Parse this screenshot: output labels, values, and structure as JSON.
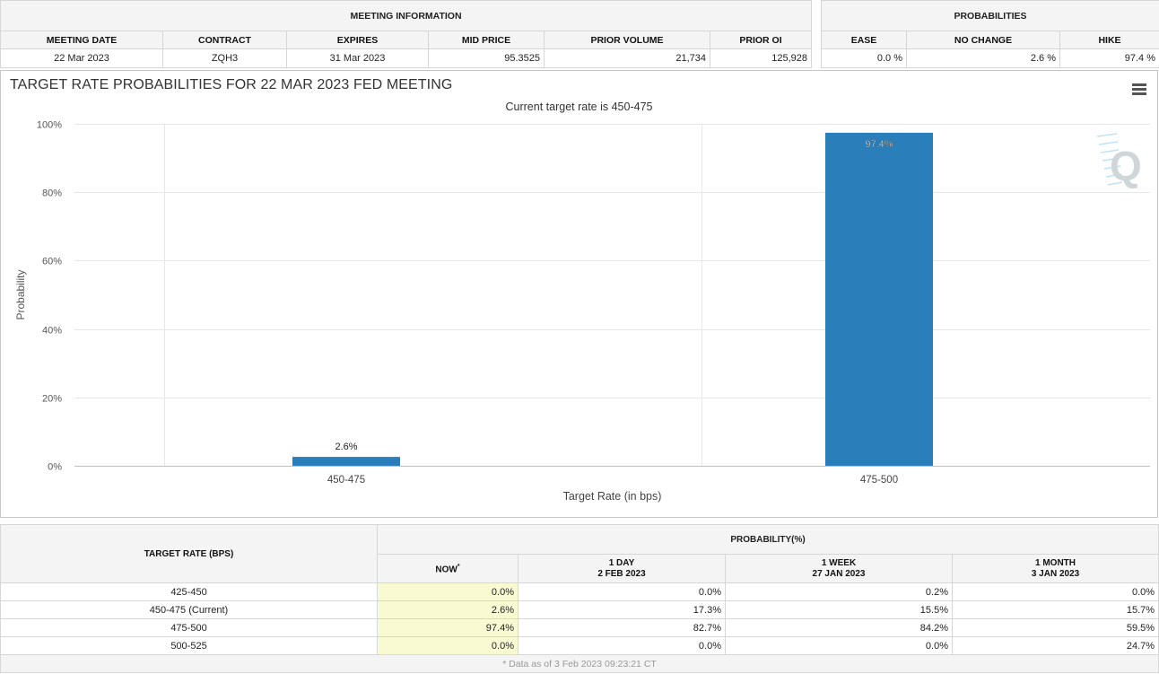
{
  "meeting_info": {
    "title": "MEETING INFORMATION",
    "headers": [
      "MEETING DATE",
      "CONTRACT",
      "EXPIRES",
      "MID PRICE",
      "PRIOR VOLUME",
      "PRIOR OI"
    ],
    "values": [
      "22 Mar 2023",
      "ZQH3",
      "31 Mar 2023",
      "95.3525",
      "21,734",
      "125,928"
    ]
  },
  "probabilities": {
    "title": "PROBABILITIES",
    "headers": [
      "EASE",
      "NO CHANGE",
      "HIKE"
    ],
    "values": [
      "0.0 %",
      "2.6 %",
      "97.4 %"
    ]
  },
  "chart_data": {
    "type": "bar",
    "title": "TARGET RATE PROBABILITIES FOR 22 MAR 2023 FED MEETING",
    "subtitle": "Current target rate is 450-475",
    "xlabel": "Target Rate (in bps)",
    "ylabel": "Probability",
    "categories": [
      "450-475",
      "475-500"
    ],
    "values": [
      2.6,
      97.4
    ],
    "data_labels": [
      "2.6%",
      "97.4%"
    ],
    "ylim": [
      0,
      100
    ],
    "yticks": [
      0,
      20,
      40,
      60,
      80,
      100
    ],
    "ytick_labels": [
      "0%",
      "20%",
      "40%",
      "60%",
      "80%",
      "100%"
    ],
    "bar_color": "#2a7fba",
    "grid": true,
    "legend": "none"
  },
  "rates_table": {
    "row_header": "TARGET RATE (BPS)",
    "prob_title": "PROBABILITY(%)",
    "col_now": "NOW",
    "col_now_mark": "*",
    "cols": [
      {
        "line1": "1 DAY",
        "line2": "2 FEB 2023"
      },
      {
        "line1": "1 WEEK",
        "line2": "27 JAN 2023"
      },
      {
        "line1": "1 MONTH",
        "line2": "3 JAN 2023"
      }
    ],
    "rows": [
      {
        "rate": "425-450",
        "now": "0.0%",
        "day": "0.0%",
        "week": "0.2%",
        "month": "0.0%"
      },
      {
        "rate": "450-475 (Current)",
        "now": "2.6%",
        "day": "17.3%",
        "week": "15.5%",
        "month": "15.7%"
      },
      {
        "rate": "475-500",
        "now": "97.4%",
        "day": "82.7%",
        "week": "84.2%",
        "month": "59.5%"
      },
      {
        "rate": "500-525",
        "now": "0.0%",
        "day": "0.0%",
        "week": "0.0%",
        "month": "24.7%"
      }
    ],
    "footnote": "* Data as of 3 Feb 2023 09:23:21 CT"
  },
  "colors": {
    "accent": "#2a7fba",
    "now_highlight": "#fafad2",
    "header_bg": "#f4f4f4"
  },
  "icons": {
    "menu": "hamburger-menu-icon",
    "watermark": "quikstrike-q-logo"
  }
}
